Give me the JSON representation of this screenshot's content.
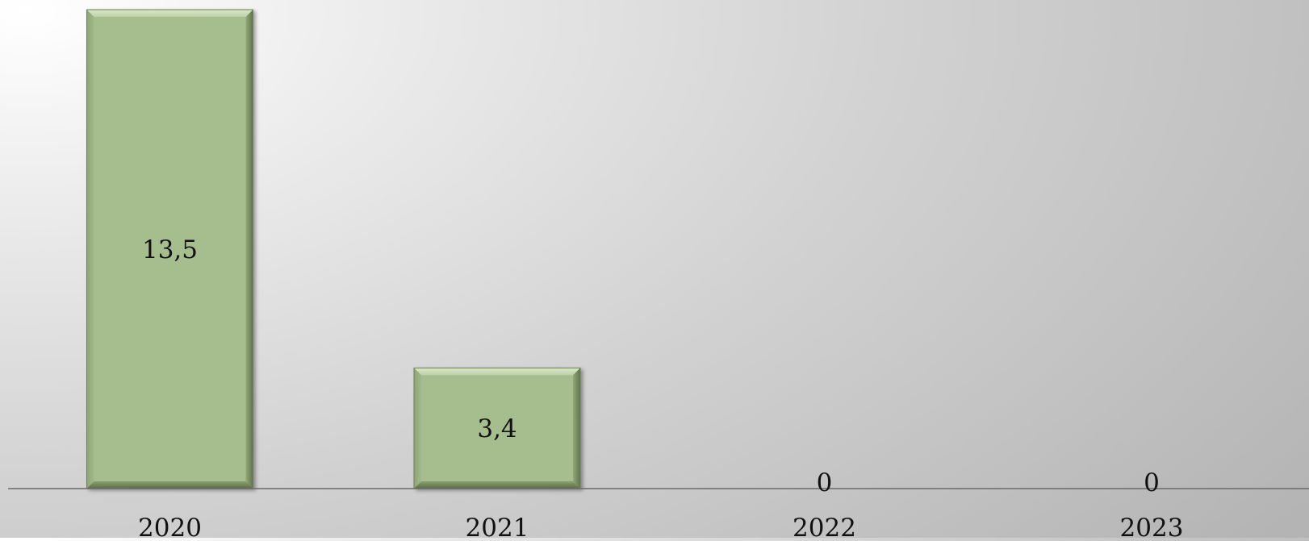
{
  "chart_data": {
    "type": "bar",
    "categories": [
      "2020",
      "2021",
      "2022",
      "2023"
    ],
    "values": [
      13.5,
      3.4,
      0,
      0
    ],
    "data_labels": [
      "13,5",
      "3,4",
      "0",
      "0"
    ],
    "title": "",
    "xlabel": "",
    "ylabel": "",
    "ylim": [
      0,
      13.5
    ],
    "grid": false,
    "legend": "none",
    "colors": {
      "bar_fill": "#a6bd8d",
      "bar_highlight": "#d2e2bf",
      "bar_shadow": "#6c8252",
      "axis_line": "#6a6a6a",
      "text": "#111111"
    }
  }
}
